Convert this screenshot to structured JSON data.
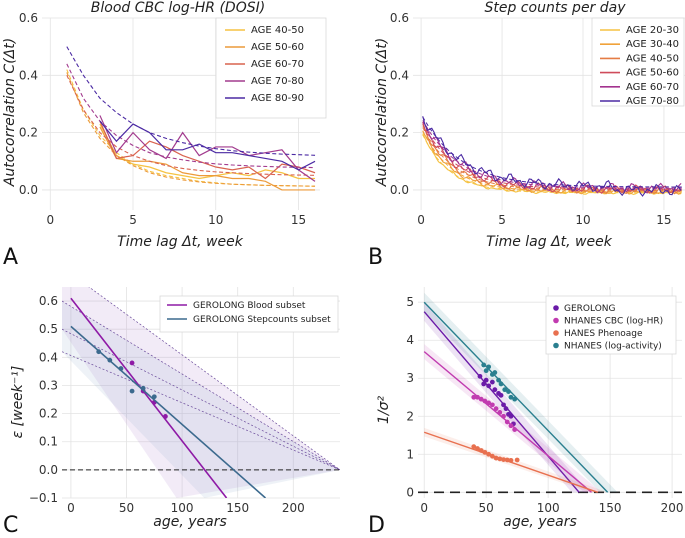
{
  "chart_data": [
    {
      "id": "A",
      "type": "line",
      "panel_label": "A",
      "title": "Blood CBC log-HR (DOSI)",
      "xlabel": "Time  lag  Δt,  week",
      "ylabel": "Autocorrelation  C(Δt)",
      "xlim": [
        -0.5,
        16.3
      ],
      "ylim": [
        -0.07,
        0.6
      ],
      "xticks": [
        "0",
        "5",
        "10",
        "15"
      ],
      "yticks": [
        "0.0",
        "0.2",
        "0.4",
        "0.6"
      ],
      "grid": true,
      "legend": "top-right",
      "series": [
        {
          "name": "AGE 40-50",
          "color": "#f5c242",
          "x": [
            3,
            4,
            5,
            6,
            7,
            8,
            9,
            10,
            11,
            12,
            13,
            14,
            15,
            16
          ],
          "values": [
            0.23,
            0.12,
            0.09,
            0.08,
            0.06,
            0.05,
            0.04,
            0.05,
            0.06,
            0.05,
            0.07,
            0.06,
            0.04,
            0.04
          ],
          "fit": [
            0.42,
            0.28,
            0.19,
            0.13,
            0.09,
            0.065,
            0.05,
            0.04,
            0.03,
            0.025,
            0.02,
            0.018,
            0.016,
            0.015,
            0.014,
            0.013
          ]
        },
        {
          "name": "AGE 50-60",
          "color": "#ec9a3a",
          "x": [
            3,
            4,
            5,
            6,
            7,
            8,
            9,
            10,
            11,
            12,
            13,
            14,
            15,
            16
          ],
          "values": [
            0.22,
            0.11,
            0.1,
            0.1,
            0.09,
            0.06,
            0.05,
            0.05,
            0.04,
            0.04,
            0.03,
            0.0,
            0.0,
            0.0
          ],
          "fit": [
            0.41,
            0.27,
            0.18,
            0.12,
            0.085,
            0.06,
            0.045,
            0.035,
            0.028,
            0.023,
            0.02,
            0.018,
            0.016,
            0.015,
            0.014,
            0.013
          ]
        },
        {
          "name": "AGE 60-70",
          "color": "#d9634f",
          "x": [
            3,
            4,
            5,
            6,
            7,
            8,
            9,
            10,
            11,
            12,
            13,
            14,
            15,
            16
          ],
          "values": [
            0.24,
            0.11,
            0.12,
            0.17,
            0.15,
            0.12,
            0.1,
            0.08,
            0.07,
            0.08,
            0.04,
            0.09,
            0.08,
            0.06
          ],
          "fit": [
            0.4,
            0.28,
            0.2,
            0.15,
            0.12,
            0.1,
            0.085,
            0.075,
            0.068,
            0.063,
            0.06,
            0.057,
            0.055,
            0.053,
            0.052,
            0.051
          ]
        },
        {
          "name": "AGE 70-80",
          "color": "#a23b8e",
          "x": [
            3,
            4,
            5,
            6,
            7,
            8,
            9,
            10,
            11,
            12,
            13,
            14,
            15,
            16
          ],
          "values": [
            0.26,
            0.13,
            0.2,
            0.14,
            0.11,
            0.2,
            0.12,
            0.15,
            0.15,
            0.12,
            0.13,
            0.14,
            0.07,
            0.03
          ],
          "fit": [
            0.44,
            0.32,
            0.24,
            0.19,
            0.155,
            0.13,
            0.115,
            0.105,
            0.097,
            0.091,
            0.087,
            0.084,
            0.082,
            0.08,
            0.079,
            0.078
          ]
        },
        {
          "name": "AGE 80-90",
          "color": "#4b2aa3",
          "x": [
            3,
            4,
            5,
            6,
            7,
            8,
            9,
            10,
            11,
            12,
            13,
            14,
            15,
            16
          ],
          "values": [
            0.24,
            0.17,
            0.23,
            0.2,
            0.14,
            0.14,
            0.16,
            0.13,
            0.13,
            0.12,
            0.11,
            0.1,
            0.07,
            0.1
          ],
          "fit": [
            0.5,
            0.4,
            0.32,
            0.27,
            0.23,
            0.2,
            0.18,
            0.165,
            0.153,
            0.144,
            0.137,
            0.132,
            0.128,
            0.125,
            0.123,
            0.121
          ]
        }
      ]
    },
    {
      "id": "B",
      "type": "line",
      "panel_label": "B",
      "title": "Step counts per day",
      "xlabel": "Time  lag  Δt,  week",
      "ylabel": "Autocorrelation  C(Δt)",
      "xlim": [
        -0.5,
        16.3
      ],
      "ylim": [
        -0.07,
        0.6
      ],
      "xticks": [
        "0",
        "5",
        "10",
        "15"
      ],
      "yticks": [
        "0.0",
        "0.2",
        "0.4",
        "0.6"
      ],
      "grid": true,
      "legend": "top-right",
      "series": [
        {
          "name": "AGE 20-30",
          "color": "#f5c242"
        },
        {
          "name": "AGE 30-40",
          "color": "#f0a23a"
        },
        {
          "name": "AGE 40-50",
          "color": "#e57c44"
        },
        {
          "name": "AGE 50-60",
          "color": "#cf4b5b"
        },
        {
          "name": "AGE 60-70",
          "color": "#a3338f"
        },
        {
          "name": "AGE 70-80",
          "color": "#4b2aa3"
        }
      ]
    },
    {
      "id": "C",
      "type": "scatter",
      "panel_label": "C",
      "xlabel": "age, years",
      "ylabel": "ε [week⁻¹]",
      "xlim": [
        -8,
        242
      ],
      "ylim": [
        -0.1,
        0.65
      ],
      "xticks": [
        "0",
        "50",
        "100",
        "150",
        "200"
      ],
      "yticks": [
        "−0.1",
        "0.0",
        "0.1",
        "0.2",
        "0.3",
        "0.4",
        "0.5",
        "0.6"
      ],
      "grid": true,
      "legend": "top-right",
      "series": [
        {
          "name": "GEROLONG Blood subset",
          "color": "#8e1aa6",
          "x": [
            55,
            65,
            75,
            85
          ],
          "values": [
            0.38,
            0.28,
            0.24,
            0.19
          ],
          "fit_line": [
            [
              0,
              0.61
            ],
            [
              140,
              -0.1
            ]
          ]
        },
        {
          "name": "GEROLONG Stepcounts subset",
          "color": "#3c6a8e",
          "x": [
            25,
            35,
            45,
            55,
            65,
            75
          ],
          "values": [
            0.42,
            0.39,
            0.36,
            0.28,
            0.29,
            0.26
          ],
          "fit_line": [
            [
              0,
              0.51
            ],
            [
              175,
              -0.1
            ]
          ]
        }
      ]
    },
    {
      "id": "D",
      "type": "scatter",
      "panel_label": "D",
      "xlabel": "age, years",
      "ylabel": "1/σ²",
      "xlim": [
        -5,
        208
      ],
      "ylim": [
        -0.15,
        5.4
      ],
      "xticks": [
        "0",
        "50",
        "100",
        "150",
        "200"
      ],
      "yticks": [
        "0",
        "1",
        "2",
        "3",
        "4",
        "5"
      ],
      "grid": true,
      "legend": "top-right",
      "series": [
        {
          "name": "GEROLONG",
          "color": "#6a1aa8",
          "x": [
            45,
            48,
            50,
            52,
            55,
            57,
            60,
            62,
            64,
            66,
            68,
            70,
            72
          ],
          "values": [
            3.05,
            2.85,
            2.95,
            2.8,
            2.9,
            2.7,
            2.6,
            2.55,
            2.3,
            2.2,
            2.05,
            2.0,
            1.8
          ],
          "fit_line": [
            [
              0,
              4.75
            ],
            [
              125,
              0
            ]
          ]
        },
        {
          "name": "NHANES CBC (log-HR)",
          "color": "#c13bb0",
          "x": [
            40,
            43,
            46,
            49,
            52,
            55,
            58,
            61,
            64,
            67,
            70,
            73
          ],
          "values": [
            2.5,
            2.5,
            2.45,
            2.4,
            2.35,
            2.3,
            2.2,
            2.1,
            2.0,
            1.85,
            1.75,
            1.65
          ],
          "fit_line": [
            [
              0,
              3.7
            ],
            [
              135,
              0
            ]
          ]
        },
        {
          "name": "HANES Phenoage",
          "color": "#e8704f",
          "x": [
            40,
            43,
            46,
            49,
            52,
            55,
            58,
            61,
            64,
            67,
            70,
            75
          ],
          "values": [
            1.2,
            1.15,
            1.1,
            1.05,
            1.0,
            0.95,
            0.9,
            0.88,
            0.86,
            0.85,
            0.84,
            0.85
          ],
          "fit_line": [
            [
              0,
              1.58
            ],
            [
              140,
              0
            ]
          ]
        },
        {
          "name": "NHANES (log-activity)",
          "color": "#2a7f8f",
          "x": [
            48,
            50,
            52,
            55,
            57,
            60,
            62,
            65,
            68,
            70,
            73
          ],
          "values": [
            3.35,
            3.2,
            3.3,
            3.1,
            3.15,
            2.95,
            2.85,
            2.7,
            2.65,
            2.5,
            2.45
          ],
          "fit_line": [
            [
              0,
              5.0
            ],
            [
              148,
              0
            ]
          ]
        }
      ]
    }
  ]
}
